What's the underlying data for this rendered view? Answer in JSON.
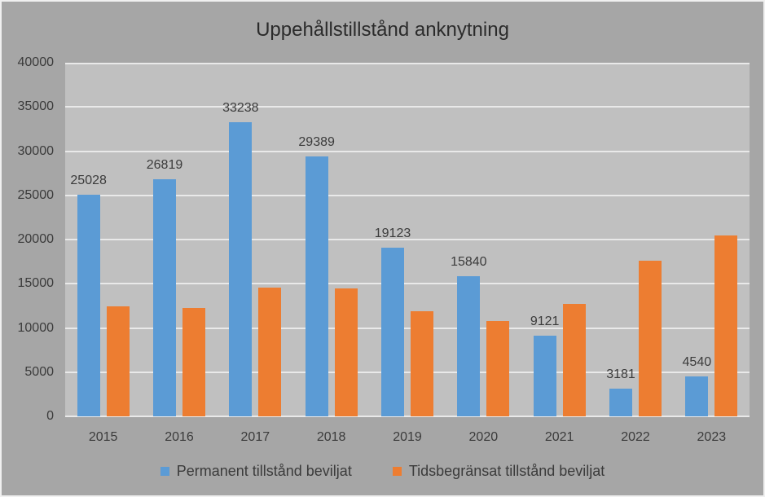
{
  "chart_data": {
    "type": "bar",
    "title": "Uppehållstillstånd anknytning",
    "categories": [
      "2015",
      "2016",
      "2017",
      "2018",
      "2019",
      "2020",
      "2021",
      "2022",
      "2023"
    ],
    "series": [
      {
        "name": "Permanent tillstånd beviljat",
        "color": "#5B9BD5",
        "values": [
          25028,
          26819,
          33238,
          29389,
          19123,
          15840,
          9121,
          3181,
          4540
        ],
        "labels_visible": true
      },
      {
        "name": "Tidsbegränsat tillstånd beviljat",
        "color": "#ED7D31",
        "values": [
          12400,
          12300,
          14600,
          14500,
          11900,
          10800,
          12700,
          17600,
          20500
        ],
        "labels_visible": false
      }
    ],
    "xlabel": "",
    "ylabel": "",
    "ylim": [
      0,
      40000
    ],
    "ytick_step": 5000,
    "ytick_labels": [
      "0",
      "5000",
      "10000",
      "15000",
      "20000",
      "25000",
      "30000",
      "35000",
      "40000"
    ],
    "grid": true,
    "legend_position": "bottom",
    "colors": {
      "background": "#A6A6A6",
      "plot_background": "#C0C0C0",
      "gridline": "#E9E9E9",
      "text": "#3B3B3B",
      "title": "#2B2B2B"
    }
  }
}
